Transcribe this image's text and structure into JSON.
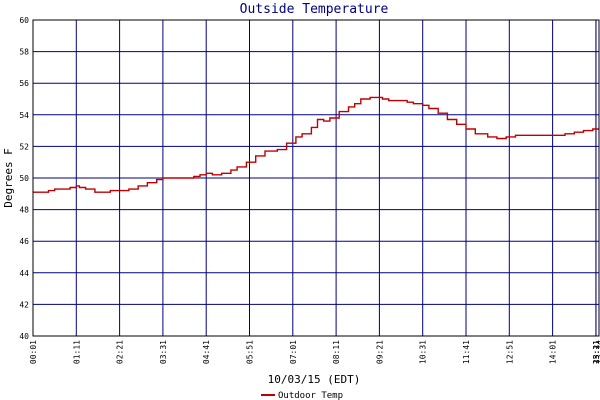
{
  "chart_data": {
    "type": "line",
    "title": "Outside Temperature",
    "xlabel": "10/03/15 (EDT)",
    "ylabel": "Degrees F",
    "ylim": [
      40,
      60
    ],
    "yticks": [
      40,
      42,
      44,
      46,
      48,
      50,
      52,
      54,
      56,
      58,
      60
    ],
    "grid": true,
    "legend": "bottom-left",
    "x_tick_labels": [
      "00:01",
      "01:11",
      "02:21",
      "03:31",
      "04:41",
      "05:51",
      "07:01",
      "08:11",
      "09:21",
      "10:31",
      "11:41",
      "12:51",
      "14:01",
      "15:11",
      "16:21",
      "17:31",
      "18:41",
      "19:51",
      "21:01",
      "22:11",
      "23:21",
      "23:24"
    ],
    "series": [
      {
        "name": "Outdoor Temp",
        "color": "#c00000",
        "points": [
          [
            0,
            49.1
          ],
          [
            15,
            49.1
          ],
          [
            25,
            49.2
          ],
          [
            35,
            49.3
          ],
          [
            55,
            49.3
          ],
          [
            60,
            49.4
          ],
          [
            70,
            49.5
          ],
          [
            75,
            49.4
          ],
          [
            85,
            49.3
          ],
          [
            100,
            49.1
          ],
          [
            110,
            49.1
          ],
          [
            125,
            49.2
          ],
          [
            140,
            49.2
          ],
          [
            155,
            49.3
          ],
          [
            170,
            49.5
          ],
          [
            185,
            49.7
          ],
          [
            200,
            49.9
          ],
          [
            210,
            50.0
          ],
          [
            235,
            50.0
          ],
          [
            260,
            50.1
          ],
          [
            270,
            50.2
          ],
          [
            280,
            50.3
          ],
          [
            290,
            50.2
          ],
          [
            305,
            50.3
          ],
          [
            320,
            50.5
          ],
          [
            330,
            50.7
          ],
          [
            345,
            51.0
          ],
          [
            360,
            51.4
          ],
          [
            375,
            51.7
          ],
          [
            395,
            51.8
          ],
          [
            410,
            52.2
          ],
          [
            425,
            52.6
          ],
          [
            435,
            52.8
          ],
          [
            450,
            53.2
          ],
          [
            460,
            53.7
          ],
          [
            470,
            53.6
          ],
          [
            480,
            53.8
          ],
          [
            495,
            54.2
          ],
          [
            510,
            54.5
          ],
          [
            520,
            54.7
          ],
          [
            530,
            55.0
          ],
          [
            545,
            55.1
          ],
          [
            555,
            55.1
          ],
          [
            565,
            55.0
          ],
          [
            575,
            54.9
          ],
          [
            595,
            54.9
          ],
          [
            605,
            54.8
          ],
          [
            615,
            54.7
          ],
          [
            630,
            54.6
          ],
          [
            640,
            54.4
          ],
          [
            655,
            54.1
          ],
          [
            670,
            53.7
          ],
          [
            685,
            53.4
          ],
          [
            700,
            53.1
          ],
          [
            715,
            52.8
          ],
          [
            735,
            52.6
          ],
          [
            750,
            52.5
          ],
          [
            765,
            52.6
          ],
          [
            780,
            52.7
          ],
          [
            840,
            52.7
          ],
          [
            860,
            52.8
          ],
          [
            875,
            52.9
          ],
          [
            890,
            53.0
          ],
          [
            905,
            53.1
          ],
          [
            915,
            53.1
          ]
        ]
      }
    ]
  }
}
